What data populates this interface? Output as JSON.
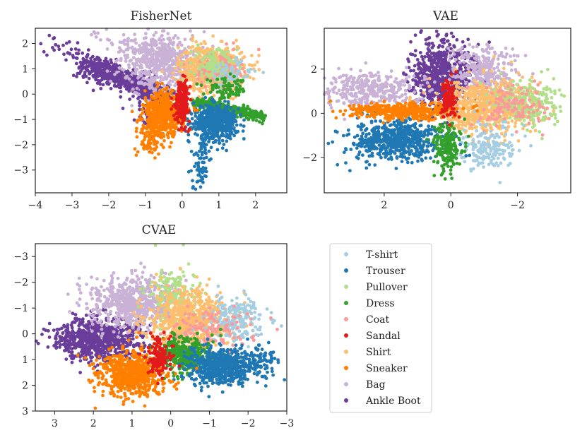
{
  "legend": {
    "entries": [
      {
        "label": "T-shirt",
        "color": "#a6cee3"
      },
      {
        "label": "Trouser",
        "color": "#1f78b4"
      },
      {
        "label": "Pullover",
        "color": "#b2df8a"
      },
      {
        "label": "Dress",
        "color": "#33a02c"
      },
      {
        "label": "Coat",
        "color": "#fb9a99"
      },
      {
        "label": "Sandal",
        "color": "#e31a1c"
      },
      {
        "label": "Shirt",
        "color": "#fdbf6f"
      },
      {
        "label": "Sneaker",
        "color": "#ff7f00"
      },
      {
        "label": "Bag",
        "color": "#cab2d6"
      },
      {
        "label": "Ankle Boot",
        "color": "#6a3d9a"
      }
    ]
  },
  "chart_data": [
    {
      "type": "scatter",
      "title": "FisherNet",
      "xlim": [
        -4,
        2.85
      ],
      "ylim": [
        -3.9,
        2.6
      ],
      "x_inverted": false,
      "y_inverted": false,
      "xticks": [
        {
          "value": -4,
          "label": "−4"
        },
        {
          "value": -3,
          "label": "−3"
        },
        {
          "value": -2,
          "label": "−2"
        },
        {
          "value": -1,
          "label": "−1"
        },
        {
          "value": 0,
          "label": "0"
        },
        {
          "value": 1,
          "label": "1"
        },
        {
          "value": 2,
          "label": "2"
        }
      ],
      "yticks": [
        {
          "value": 2,
          "label": "2"
        },
        {
          "value": 1,
          "label": "1"
        },
        {
          "value": 0,
          "label": "0"
        },
        {
          "value": -1,
          "label": "−1"
        },
        {
          "value": -2,
          "label": "−2"
        },
        {
          "value": -3,
          "label": "−3"
        }
      ],
      "series": [
        {
          "name": "Ankle Boot",
          "n": 650,
          "kind": "elong",
          "a": [
            -2.6,
            1.2
          ],
          "b": [
            -0.4,
            -0.2
          ],
          "w": 0.22
        },
        {
          "name": "Ankle Boot",
          "n": 40,
          "kind": "elong",
          "a": [
            -3.8,
            2.1
          ],
          "b": [
            -2.3,
            1.2
          ],
          "w": 0.18
        },
        {
          "name": "Ankle Boot",
          "n": 25,
          "kind": "blob",
          "c": [
            -1.0,
            -0.9
          ],
          "s": [
            0.15,
            0.25
          ],
          "r": 0
        },
        {
          "name": "Bag",
          "n": 550,
          "kind": "blob",
          "c": [
            -0.6,
            1.3
          ],
          "s": [
            0.5,
            0.6
          ],
          "r": -0.2
        },
        {
          "name": "Bag",
          "n": 50,
          "kind": "elong",
          "a": [
            -2.4,
            2.4
          ],
          "b": [
            -0.5,
            1.6
          ],
          "w": 0.2
        },
        {
          "name": "Shirt",
          "n": 700,
          "kind": "blob",
          "c": [
            0.8,
            1.0
          ],
          "s": [
            0.45,
            0.45
          ],
          "r": 0
        },
        {
          "name": "Coat",
          "n": 150,
          "kind": "blob",
          "c": [
            1.0,
            1.0
          ],
          "s": [
            0.3,
            0.35
          ],
          "r": 0
        },
        {
          "name": "Pullover",
          "n": 120,
          "kind": "blob",
          "c": [
            0.9,
            1.1
          ],
          "s": [
            0.3,
            0.35
          ],
          "r": 0
        },
        {
          "name": "T-shirt",
          "n": 60,
          "kind": "blob",
          "c": [
            1.3,
            0.8
          ],
          "s": [
            0.3,
            0.3
          ],
          "r": 0
        },
        {
          "name": "Dress",
          "n": 320,
          "kind": "elong",
          "a": [
            0.4,
            -0.3
          ],
          "b": [
            2.2,
            -0.9
          ],
          "w": 0.1
        },
        {
          "name": "Dress",
          "n": 80,
          "kind": "blob",
          "c": [
            1.2,
            0.2
          ],
          "s": [
            0.3,
            0.2
          ],
          "r": 0
        },
        {
          "name": "Trouser",
          "n": 550,
          "kind": "blob",
          "c": [
            0.9,
            -1.1
          ],
          "s": [
            0.3,
            0.32
          ],
          "r": 0
        },
        {
          "name": "Trouser",
          "n": 80,
          "kind": "elong",
          "a": [
            0.6,
            -1.5
          ],
          "b": [
            0.4,
            -3.7
          ],
          "w": 0.12
        },
        {
          "name": "Sneaker",
          "n": 500,
          "kind": "blob",
          "c": [
            -0.5,
            -0.8
          ],
          "s": [
            0.28,
            0.45
          ],
          "r": 0
        },
        {
          "name": "Sneaker",
          "n": 100,
          "kind": "elong",
          "a": [
            -0.7,
            -1.0
          ],
          "b": [
            -0.9,
            -2.2
          ],
          "w": 0.18
        },
        {
          "name": "Sandal",
          "n": 200,
          "kind": "blob",
          "c": [
            0.0,
            -0.3
          ],
          "s": [
            0.1,
            0.4
          ],
          "r": 0
        }
      ]
    },
    {
      "type": "scatter",
      "title": "VAE",
      "xlim": [
        3.8,
        -3.6
      ],
      "ylim": [
        -3.6,
        3.85
      ],
      "x_inverted": true,
      "y_inverted": false,
      "xticks": [
        {
          "value": 2,
          "label": "2"
        },
        {
          "value": 0,
          "label": "0"
        },
        {
          "value": -2,
          "label": "−2"
        }
      ],
      "yticks": [
        {
          "value": 2,
          "label": "2"
        },
        {
          "value": 0,
          "label": "0"
        },
        {
          "value": -2,
          "label": "−2"
        }
      ],
      "series": [
        {
          "name": "Ankle Boot",
          "n": 650,
          "kind": "blob",
          "c": [
            0.3,
            1.6
          ],
          "s": [
            0.45,
            0.75
          ],
          "r": 0
        },
        {
          "name": "Ankle Boot",
          "n": 40,
          "kind": "blob",
          "c": [
            0.2,
            3.0
          ],
          "s": [
            0.25,
            0.4
          ],
          "r": 0
        },
        {
          "name": "Bag",
          "n": 350,
          "kind": "blob",
          "c": [
            2.4,
            1.1
          ],
          "s": [
            0.8,
            0.4
          ],
          "r": 0
        },
        {
          "name": "Bag",
          "n": 280,
          "kind": "blob",
          "c": [
            -1.0,
            1.9
          ],
          "s": [
            0.5,
            0.6
          ],
          "r": 0
        },
        {
          "name": "Shirt",
          "n": 750,
          "kind": "blob",
          "c": [
            -1.0,
            0.3
          ],
          "s": [
            0.7,
            0.6
          ],
          "r": 0
        },
        {
          "name": "Pullover",
          "n": 220,
          "kind": "blob",
          "c": [
            -2.3,
            0.4
          ],
          "s": [
            0.5,
            0.5
          ],
          "r": 0
        },
        {
          "name": "Coat",
          "n": 120,
          "kind": "blob",
          "c": [
            -1.8,
            0.3
          ],
          "s": [
            0.5,
            0.5
          ],
          "r": 0
        },
        {
          "name": "T-shirt",
          "n": 180,
          "kind": "blob",
          "c": [
            -1.1,
            -1.5
          ],
          "s": [
            0.4,
            0.5
          ],
          "r": 0
        },
        {
          "name": "Trouser",
          "n": 600,
          "kind": "blob",
          "c": [
            1.7,
            -1.2
          ],
          "s": [
            0.7,
            0.45
          ],
          "r": 0
        },
        {
          "name": "Sneaker",
          "n": 450,
          "kind": "blob",
          "c": [
            1.4,
            0.1
          ],
          "s": [
            0.8,
            0.18
          ],
          "r": 0
        },
        {
          "name": "Dress",
          "n": 200,
          "kind": "blob",
          "c": [
            0.1,
            -1.6
          ],
          "s": [
            0.2,
            0.55
          ],
          "r": 0
        },
        {
          "name": "Sandal",
          "n": 120,
          "kind": "blob",
          "c": [
            0.1,
            0.6
          ],
          "s": [
            0.12,
            0.4
          ],
          "r": 0
        }
      ]
    },
    {
      "type": "scatter",
      "title": "CVAE",
      "xlim": [
        3.5,
        -3.0
      ],
      "ylim": [
        3.0,
        -3.5
      ],
      "x_inverted": true,
      "y_inverted": true,
      "xticks": [
        {
          "value": 3,
          "label": "3"
        },
        {
          "value": 2,
          "label": "2"
        },
        {
          "value": 1,
          "label": "1"
        },
        {
          "value": 0,
          "label": "0"
        },
        {
          "value": -1,
          "label": "−1"
        },
        {
          "value": -2,
          "label": "−2"
        },
        {
          "value": -3,
          "label": "−3"
        }
      ],
      "yticks": [
        {
          "value": -3,
          "label": "−3"
        },
        {
          "value": -2,
          "label": "−2"
        },
        {
          "value": -1,
          "label": "−1"
        },
        {
          "value": 0,
          "label": "0"
        },
        {
          "value": 1,
          "label": "1"
        },
        {
          "value": 2,
          "label": "2"
        },
        {
          "value": 3,
          "label": "3"
        }
      ],
      "series": [
        {
          "name": "Ankle Boot",
          "n": 750,
          "kind": "blob",
          "c": [
            1.9,
            0.2
          ],
          "s": [
            0.55,
            0.4
          ],
          "r": 0
        },
        {
          "name": "Bag",
          "n": 650,
          "kind": "blob",
          "c": [
            1.0,
            -1.2
          ],
          "s": [
            0.55,
            0.5
          ],
          "r": 0
        },
        {
          "name": "Pullover",
          "n": 150,
          "kind": "blob",
          "c": [
            0.0,
            -1.6
          ],
          "s": [
            0.3,
            0.5
          ],
          "r": 0
        },
        {
          "name": "Shirt",
          "n": 700,
          "kind": "blob",
          "c": [
            -0.5,
            -0.5
          ],
          "s": [
            0.55,
            0.6
          ],
          "r": 0
        },
        {
          "name": "T-shirt",
          "n": 200,
          "kind": "blob",
          "c": [
            -1.7,
            -0.6
          ],
          "s": [
            0.4,
            0.4
          ],
          "r": 0
        },
        {
          "name": "Coat",
          "n": 120,
          "kind": "blob",
          "c": [
            -1.0,
            -0.2
          ],
          "s": [
            0.5,
            0.4
          ],
          "r": 0
        },
        {
          "name": "Dress",
          "n": 350,
          "kind": "blob",
          "c": [
            -0.4,
            0.8
          ],
          "s": [
            0.35,
            0.35
          ],
          "r": 0
        },
        {
          "name": "Trouser",
          "n": 650,
          "kind": "blob",
          "c": [
            -1.3,
            1.3
          ],
          "s": [
            0.45,
            0.35
          ],
          "r": 0
        },
        {
          "name": "Trouser",
          "n": 60,
          "kind": "blob",
          "c": [
            -2.4,
            1.0
          ],
          "s": [
            0.2,
            0.3
          ],
          "r": 0
        },
        {
          "name": "Sneaker",
          "n": 650,
          "kind": "blob",
          "c": [
            1.0,
            1.5
          ],
          "s": [
            0.45,
            0.45
          ],
          "r": 0
        },
        {
          "name": "Sandal",
          "n": 150,
          "kind": "blob",
          "c": [
            0.3,
            0.9
          ],
          "s": [
            0.15,
            0.35
          ],
          "r": 0
        }
      ]
    }
  ]
}
